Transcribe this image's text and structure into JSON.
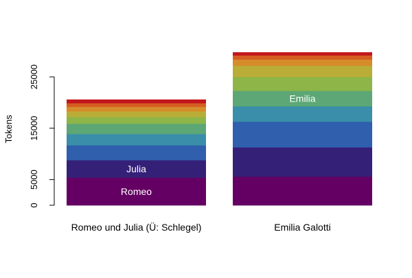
{
  "chart_data": {
    "type": "bar",
    "stacked": true,
    "title": "",
    "xlabel": "",
    "ylabel": "Tokens",
    "ylim": [
      0,
      30000
    ],
    "yticks": [
      0,
      5000,
      15000,
      25000
    ],
    "ytick_labels": [
      "0",
      "5000",
      "15000",
      "25000"
    ],
    "grid": false,
    "categories": [
      "Romeo und Julia (Ü: Schlegel)",
      "Emilia Galotti"
    ],
    "segment_colors": [
      "#640063",
      "#352077",
      "#2f5fad",
      "#3a8ea9",
      "#5ca775",
      "#8db548",
      "#b9ad38",
      "#d68c2b",
      "#d55d22",
      "#c2161c"
    ],
    "stacks": [
      {
        "category": "Romeo und Julia (Ü: Schlegel)",
        "values": [
          5400,
          3400,
          2900,
          2200,
          2000,
          1300,
          1100,
          900,
          700,
          700
        ],
        "labels": [
          {
            "segment": 0,
            "text": "Romeo"
          },
          {
            "segment": 1,
            "text": "Julia"
          }
        ]
      },
      {
        "category": "Emilia Galotti",
        "values": [
          5600,
          5700,
          5000,
          3000,
          3000,
          2700,
          2200,
          1200,
          800,
          600
        ],
        "labels": [
          {
            "segment": 4,
            "text": "Emilia"
          }
        ]
      }
    ]
  }
}
